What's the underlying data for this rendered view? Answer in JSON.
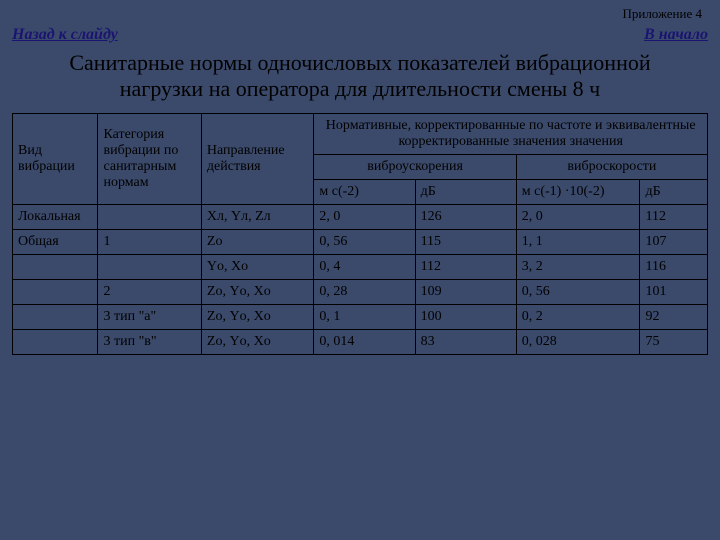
{
  "app_label": "Приложение 4",
  "nav_back": "Назад к слайду",
  "nav_start": "В начало",
  "title": "Санитарные нормы одночисловых показателей вибрационной нагрузки на оператора для длительности смены 8 ч",
  "table": {
    "h_vid": "Вид вибрации",
    "h_cat": "Категория вибрации по санитарным нормам",
    "h_dir": "Направление действия",
    "h_norm_top": "Нормативные, корректированные по частоте и эквивалентные корректированные значения значения",
    "h_acc": "виброускорения",
    "h_vel": "виброскорости",
    "h_u1": "м с(-2)",
    "h_u2": "дБ",
    "h_u3": "м с(-1) ·10(-2)",
    "h_u4": "дБ",
    "rows": [
      {
        "vid": "Локальная",
        "cat": "",
        "dir": "Xл, Yл, Zл",
        "a": "2, 0",
        "b": "126",
        "c": "2, 0",
        "d": "112"
      },
      {
        "vid": "Общая",
        "cat": "1",
        "dir": "Zо",
        "a": "0, 56",
        "b": "115",
        "c": "1, 1",
        "d": "107"
      },
      {
        "vid": "",
        "cat": "",
        "dir": "Yо, Xо",
        "a": "0, 4",
        "b": "112",
        "c": "3, 2",
        "d": "116"
      },
      {
        "vid": "",
        "cat": "2",
        "dir": "Zо, Yо, Xо",
        "a": "0, 28",
        "b": "109",
        "c": "0, 56",
        "d": "101"
      },
      {
        "vid": "",
        "cat": "3 тип \"а\"",
        "dir": "Zо, Yо, Xо",
        "a": "0, 1",
        "b": "100",
        "c": "0, 2",
        "d": "92"
      },
      {
        "vid": "",
        "cat": "3 тип \"в\"",
        "dir": "Zо, Yо, Xо",
        "a": "0, 014",
        "b": "83",
        "c": "0, 028",
        "d": "75"
      }
    ]
  }
}
